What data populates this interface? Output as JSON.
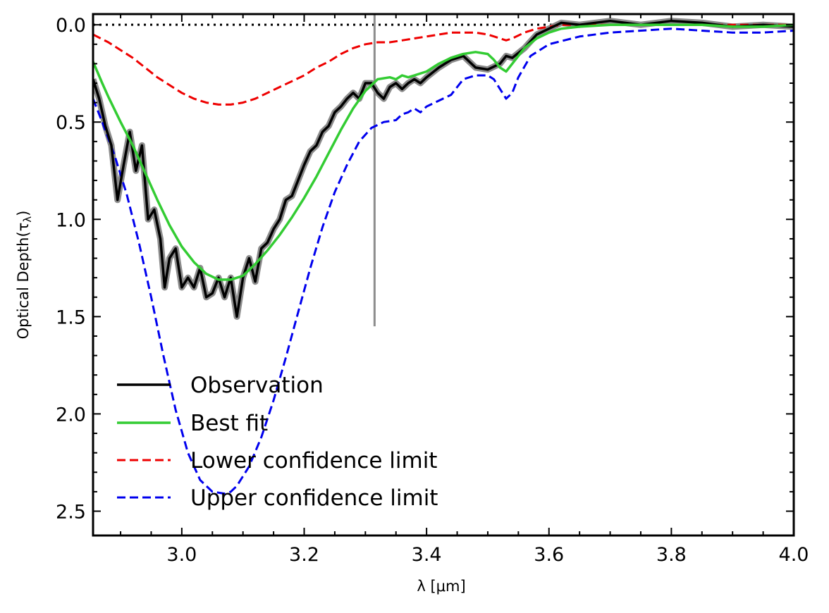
{
  "chart_data": {
    "type": "line",
    "xlabel": "λ [μm]",
    "ylabel": "Optical Depth(τ",
    "ylabel_sub": "λ",
    "ylabel_close": ")",
    "xlim": [
      2.855,
      4.0
    ],
    "ylim": [
      2.625,
      -0.055
    ],
    "y_inverted": true,
    "grid": false,
    "legend_position": "lower-left",
    "x_ticks": [
      {
        "value": 3.0,
        "label": "3.0"
      },
      {
        "value": 3.2,
        "label": "3.2"
      },
      {
        "value": 3.4,
        "label": "3.4"
      },
      {
        "value": 3.6,
        "label": "3.6"
      },
      {
        "value": 3.8,
        "label": "3.8"
      },
      {
        "value": 4.0,
        "label": "4.0"
      }
    ],
    "y_ticks": [
      {
        "value": 0.0,
        "label": "0.0"
      },
      {
        "value": 0.5,
        "label": "0.5"
      },
      {
        "value": 1.0,
        "label": "1.0"
      },
      {
        "value": 1.5,
        "label": "1.5"
      },
      {
        "value": 2.0,
        "label": "2.0"
      },
      {
        "value": 2.5,
        "label": "2.5"
      }
    ],
    "reference_line": {
      "y": 0.0,
      "style": "dotted",
      "color": "#000000"
    },
    "series": [
      {
        "name": "Observation",
        "color": "#000000",
        "style": "solid",
        "uncertainty_color": "#8c8c8c",
        "x": [
          2.855,
          2.865,
          2.875,
          2.885,
          2.895,
          2.905,
          2.915,
          2.925,
          2.935,
          2.945,
          2.955,
          2.965,
          2.972,
          2.98,
          2.99,
          3.0,
          3.01,
          3.02,
          3.03,
          3.04,
          3.05,
          3.06,
          3.07,
          3.08,
          3.09,
          3.1,
          3.11,
          3.12,
          3.13,
          3.14,
          3.15,
          3.16,
          3.17,
          3.18,
          3.19,
          3.2,
          3.21,
          3.22,
          3.23,
          3.24,
          3.25,
          3.26,
          3.27,
          3.28,
          3.29,
          3.3,
          3.31,
          3.32,
          3.33,
          3.34,
          3.35,
          3.36,
          3.37,
          3.38,
          3.39,
          3.4,
          3.42,
          3.44,
          3.46,
          3.48,
          3.5,
          3.52,
          3.53,
          3.54,
          3.56,
          3.58,
          3.6,
          3.62,
          3.65,
          3.7,
          3.75,
          3.8,
          3.85,
          3.9,
          3.95,
          4.0
        ],
        "y": [
          0.28,
          0.38,
          0.52,
          0.62,
          0.9,
          0.72,
          0.55,
          0.75,
          0.62,
          1.0,
          0.95,
          1.1,
          1.35,
          1.2,
          1.15,
          1.35,
          1.3,
          1.35,
          1.25,
          1.4,
          1.38,
          1.3,
          1.4,
          1.3,
          1.5,
          1.3,
          1.2,
          1.32,
          1.15,
          1.12,
          1.05,
          1.0,
          0.9,
          0.88,
          0.8,
          0.72,
          0.65,
          0.62,
          0.55,
          0.52,
          0.45,
          0.42,
          0.38,
          0.35,
          0.38,
          0.3,
          0.3,
          0.35,
          0.38,
          0.32,
          0.3,
          0.33,
          0.3,
          0.28,
          0.3,
          0.27,
          0.22,
          0.18,
          0.16,
          0.22,
          0.23,
          0.2,
          0.16,
          0.17,
          0.12,
          0.05,
          0.02,
          -0.01,
          0.0,
          -0.02,
          0.0,
          -0.02,
          -0.01,
          0.01,
          0.0,
          0.01
        ]
      },
      {
        "name": "Best fit",
        "color": "#33cc33",
        "style": "solid",
        "x": [
          2.855,
          2.87,
          2.88,
          2.9,
          2.92,
          2.94,
          2.96,
          2.98,
          3.0,
          3.02,
          3.04,
          3.06,
          3.08,
          3.1,
          3.12,
          3.14,
          3.16,
          3.18,
          3.2,
          3.22,
          3.24,
          3.26,
          3.28,
          3.3,
          3.32,
          3.34,
          3.35,
          3.36,
          3.37,
          3.38,
          3.4,
          3.42,
          3.44,
          3.46,
          3.48,
          3.5,
          3.51,
          3.52,
          3.53,
          3.54,
          3.56,
          3.58,
          3.6,
          3.62,
          3.65,
          3.7,
          3.75,
          3.8,
          3.85,
          3.9,
          3.95,
          4.0
        ],
        "y": [
          0.19,
          0.3,
          0.37,
          0.5,
          0.62,
          0.76,
          0.9,
          1.03,
          1.14,
          1.22,
          1.28,
          1.31,
          1.31,
          1.29,
          1.23,
          1.16,
          1.08,
          0.99,
          0.89,
          0.78,
          0.66,
          0.54,
          0.43,
          0.34,
          0.28,
          0.27,
          0.28,
          0.26,
          0.27,
          0.26,
          0.24,
          0.2,
          0.17,
          0.15,
          0.14,
          0.15,
          0.18,
          0.22,
          0.24,
          0.2,
          0.12,
          0.07,
          0.04,
          0.02,
          0.01,
          0.0,
          0.0,
          0.0,
          0.0,
          0.01,
          0.01,
          0.0
        ]
      },
      {
        "name": "Lower confidence limit",
        "color": "#ee0000",
        "style": "dashed",
        "x": [
          2.855,
          2.88,
          2.9,
          2.92,
          2.94,
          2.96,
          2.98,
          3.0,
          3.02,
          3.04,
          3.06,
          3.08,
          3.1,
          3.12,
          3.14,
          3.16,
          3.18,
          3.2,
          3.22,
          3.24,
          3.26,
          3.28,
          3.3,
          3.32,
          3.34,
          3.36,
          3.38,
          3.4,
          3.42,
          3.44,
          3.46,
          3.48,
          3.5,
          3.52,
          3.53,
          3.54,
          3.56,
          3.58,
          3.6,
          3.62,
          3.65,
          3.7,
          3.75,
          3.8,
          3.85,
          3.9,
          3.95,
          4.0
        ],
        "y": [
          0.05,
          0.09,
          0.13,
          0.17,
          0.22,
          0.27,
          0.31,
          0.35,
          0.38,
          0.4,
          0.41,
          0.41,
          0.4,
          0.38,
          0.35,
          0.32,
          0.29,
          0.26,
          0.22,
          0.19,
          0.15,
          0.12,
          0.1,
          0.09,
          0.09,
          0.08,
          0.07,
          0.06,
          0.05,
          0.04,
          0.04,
          0.04,
          0.05,
          0.07,
          0.08,
          0.07,
          0.04,
          0.02,
          0.01,
          0.0,
          0.0,
          0.0,
          0.0,
          0.0,
          0.0,
          0.0,
          0.0,
          0.0
        ]
      },
      {
        "name": "Upper confidence limit",
        "color": "#0000ee",
        "style": "dashed",
        "x": [
          2.855,
          2.87,
          2.89,
          2.91,
          2.93,
          2.95,
          2.97,
          2.99,
          3.01,
          3.03,
          3.05,
          3.07,
          3.08,
          3.09,
          3.11,
          3.13,
          3.15,
          3.17,
          3.19,
          3.21,
          3.23,
          3.25,
          3.27,
          3.29,
          3.31,
          3.33,
          3.35,
          3.36,
          3.37,
          3.38,
          3.39,
          3.4,
          3.42,
          3.44,
          3.46,
          3.48,
          3.5,
          3.51,
          3.52,
          3.53,
          3.54,
          3.55,
          3.57,
          3.6,
          3.65,
          3.7,
          3.75,
          3.8,
          3.85,
          3.9,
          3.95,
          4.0
        ],
        "y": [
          0.38,
          0.5,
          0.67,
          0.87,
          1.12,
          1.4,
          1.7,
          1.98,
          2.2,
          2.34,
          2.4,
          2.41,
          2.4,
          2.37,
          2.27,
          2.12,
          1.93,
          1.71,
          1.48,
          1.25,
          1.04,
          0.86,
          0.72,
          0.6,
          0.53,
          0.5,
          0.49,
          0.46,
          0.45,
          0.43,
          0.45,
          0.42,
          0.39,
          0.36,
          0.28,
          0.26,
          0.26,
          0.28,
          0.33,
          0.38,
          0.35,
          0.27,
          0.16,
          0.1,
          0.06,
          0.04,
          0.03,
          0.02,
          0.03,
          0.04,
          0.04,
          0.03
        ]
      }
    ],
    "spike": {
      "x": 3.315,
      "y_top": -0.05,
      "y_bottom": 1.55,
      "color": "#8c8c8c"
    }
  }
}
